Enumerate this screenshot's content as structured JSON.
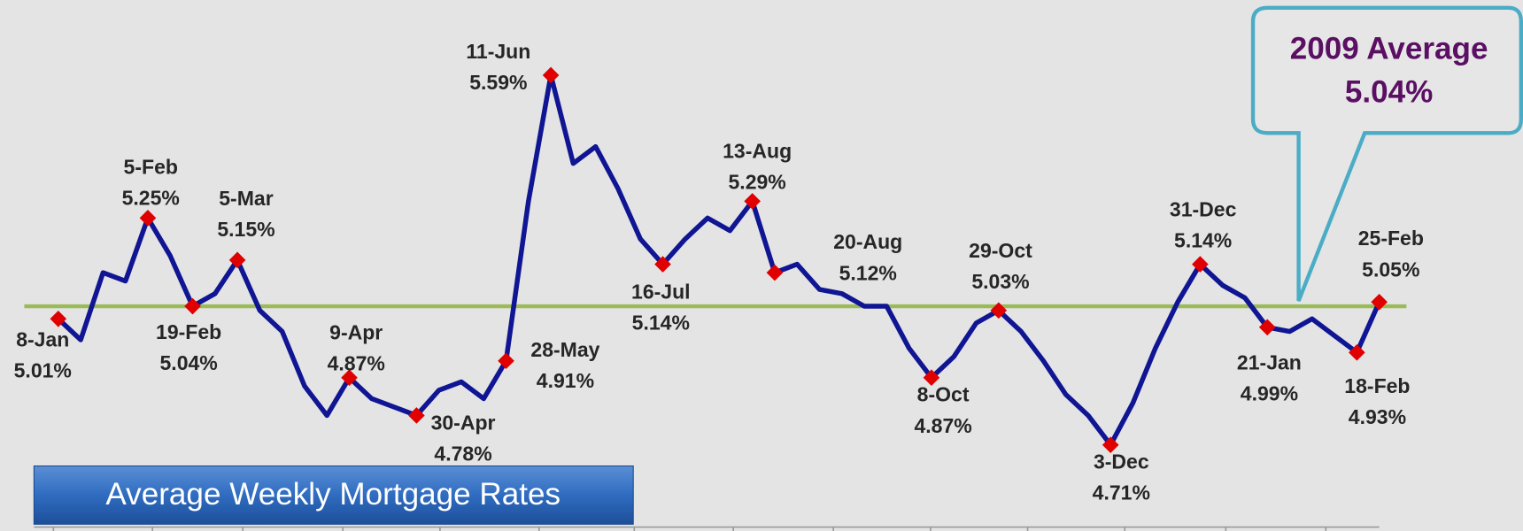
{
  "chart_data": {
    "type": "line",
    "title": "Average Weekly Mortgage Rates",
    "categories": [
      "8-Jan",
      null,
      null,
      null,
      "5-Feb",
      null,
      "19-Feb",
      null,
      "5-Mar",
      null,
      null,
      null,
      null,
      "9-Apr",
      null,
      null,
      "30-Apr",
      null,
      null,
      null,
      "28-May",
      null,
      "11-Jun",
      null,
      null,
      null,
      null,
      "16-Jul",
      null,
      null,
      null,
      "13-Aug",
      "20-Aug",
      null,
      null,
      null,
      null,
      null,
      null,
      "8-Oct",
      null,
      null,
      "29-Oct",
      null,
      null,
      null,
      null,
      "3-Dec",
      null,
      null,
      null,
      "31-Dec",
      null,
      null,
      "21-Jan",
      null,
      null,
      null,
      "18-Feb",
      "25-Feb"
    ],
    "values": [
      5.01,
      4.96,
      5.12,
      5.1,
      5.25,
      5.16,
      5.04,
      5.07,
      5.15,
      5.03,
      4.98,
      4.85,
      4.78,
      4.87,
      4.82,
      4.8,
      4.78,
      4.84,
      4.86,
      4.82,
      4.91,
      5.29,
      5.59,
      5.38,
      5.42,
      5.32,
      5.2,
      5.14,
      5.2,
      5.25,
      5.22,
      5.29,
      5.12,
      5.14,
      5.08,
      5.07,
      5.04,
      5.04,
      4.94,
      4.87,
      4.92,
      5.0,
      5.03,
      4.98,
      4.91,
      4.83,
      4.78,
      4.71,
      4.81,
      4.94,
      5.05,
      5.14,
      5.09,
      5.06,
      4.99,
      4.98,
      5.01,
      4.97,
      4.93,
      5.05
    ],
    "value_labels": [
      "5.01%",
      null,
      null,
      null,
      "5.25%",
      null,
      "5.04%",
      null,
      "5.15%",
      null,
      null,
      null,
      null,
      "4.87%",
      null,
      null,
      "4.78%",
      null,
      null,
      null,
      "4.91%",
      null,
      "5.59%",
      null,
      null,
      null,
      null,
      "5.14%",
      null,
      null,
      null,
      "5.29%",
      "5.12%",
      null,
      null,
      null,
      null,
      null,
      null,
      "4.87%",
      null,
      null,
      "5.03%",
      null,
      null,
      null,
      null,
      "4.71%",
      null,
      null,
      null,
      "5.14%",
      null,
      null,
      "4.99%",
      null,
      null,
      null,
      "4.93%",
      "5.05%"
    ],
    "color": "#0f1593",
    "marker_color": "#e00000",
    "ylim": [
      4.505,
      5.769
    ],
    "average_line": {
      "value": 5.04,
      "label": "5.04%",
      "color": "#9bbb59"
    },
    "callout_title": "2009 Average"
  }
}
